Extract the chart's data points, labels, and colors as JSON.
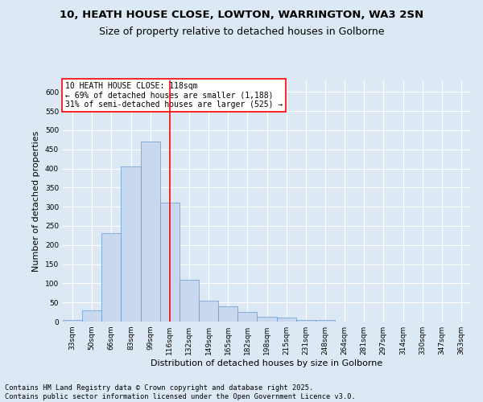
{
  "title_line1": "10, HEATH HOUSE CLOSE, LOWTON, WARRINGTON, WA3 2SN",
  "title_line2": "Size of property relative to detached houses in Golborne",
  "xlabel": "Distribution of detached houses by size in Golborne",
  "ylabel": "Number of detached properties",
  "bin_labels": [
    "33sqm",
    "50sqm",
    "66sqm",
    "83sqm",
    "99sqm",
    "116sqm",
    "132sqm",
    "149sqm",
    "165sqm",
    "182sqm",
    "198sqm",
    "215sqm",
    "231sqm",
    "248sqm",
    "264sqm",
    "281sqm",
    "297sqm",
    "314sqm",
    "330sqm",
    "347sqm",
    "363sqm"
  ],
  "bar_values": [
    5,
    30,
    230,
    405,
    470,
    310,
    110,
    55,
    40,
    25,
    13,
    10,
    5,
    5,
    0,
    0,
    0,
    0,
    0,
    0,
    0
  ],
  "bar_color": "#c8d8ee",
  "bar_edge_color": "#6699cc",
  "vline_x_index": 5,
  "vline_color": "red",
  "annotation_text": "10 HEATH HOUSE CLOSE: 118sqm\n← 69% of detached houses are smaller (1,188)\n31% of semi-detached houses are larger (525) →",
  "annotation_box_color": "white",
  "annotation_box_edge": "red",
  "background_color": "#dce9f5",
  "plot_bg_color": "#dce9f5",
  "grid_color": "white",
  "ylim": [
    0,
    630
  ],
  "yticks": [
    0,
    50,
    100,
    150,
    200,
    250,
    300,
    350,
    400,
    450,
    500,
    550,
    600
  ],
  "footer_text": "Contains HM Land Registry data © Crown copyright and database right 2025.\nContains public sector information licensed under the Open Government Licence v3.0.",
  "title_fontsize": 9.5,
  "subtitle_fontsize": 9,
  "tick_fontsize": 6.5,
  "label_fontsize": 8,
  "annotation_fontsize": 7,
  "footer_fontsize": 6.2
}
